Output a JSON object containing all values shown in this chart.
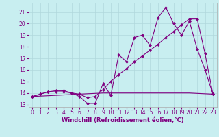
{
  "xlabel": "Windchill (Refroidissement éolien,°C)",
  "background_color": "#c8eef0",
  "line_color": "#800080",
  "grid_color": "#b0d8dc",
  "xlim": [
    -0.5,
    23.5
  ],
  "ylim": [
    12.8,
    21.8
  ],
  "yticks": [
    13,
    14,
    15,
    16,
    17,
    18,
    19,
    20,
    21
  ],
  "xticks": [
    0,
    1,
    2,
    3,
    4,
    5,
    6,
    7,
    8,
    9,
    10,
    11,
    12,
    13,
    14,
    15,
    16,
    17,
    18,
    19,
    20,
    21,
    22,
    23
  ],
  "series1_x": [
    0,
    1,
    2,
    3,
    4,
    5,
    6,
    7,
    8,
    9,
    10,
    11,
    12,
    13,
    14,
    15,
    16,
    17,
    18,
    19,
    20,
    21,
    22,
    23
  ],
  "series1_y": [
    13.7,
    13.9,
    14.1,
    14.1,
    14.1,
    14.0,
    13.7,
    13.1,
    13.1,
    14.8,
    13.8,
    17.3,
    16.7,
    18.8,
    19.0,
    18.1,
    20.5,
    21.4,
    20.0,
    19.0,
    20.2,
    17.8,
    16.0,
    13.9
  ],
  "series2_x": [
    0,
    1,
    2,
    3,
    4,
    5,
    6,
    7,
    8,
    9,
    10,
    11,
    12,
    13,
    14,
    15,
    16,
    17,
    18,
    19,
    20,
    21,
    22,
    23
  ],
  "series2_y": [
    13.7,
    13.9,
    14.1,
    14.2,
    14.2,
    14.0,
    13.9,
    13.6,
    13.7,
    14.3,
    15.0,
    15.6,
    16.1,
    16.7,
    17.2,
    17.7,
    18.2,
    18.8,
    19.3,
    19.9,
    20.4,
    20.4,
    17.4,
    13.9
  ],
  "series3_x": [
    0,
    9,
    20,
    23
  ],
  "series3_y": [
    13.7,
    14.0,
    14.0,
    13.9
  ],
  "xlabel_fontsize": 6,
  "tick_fontsize": 5.5
}
